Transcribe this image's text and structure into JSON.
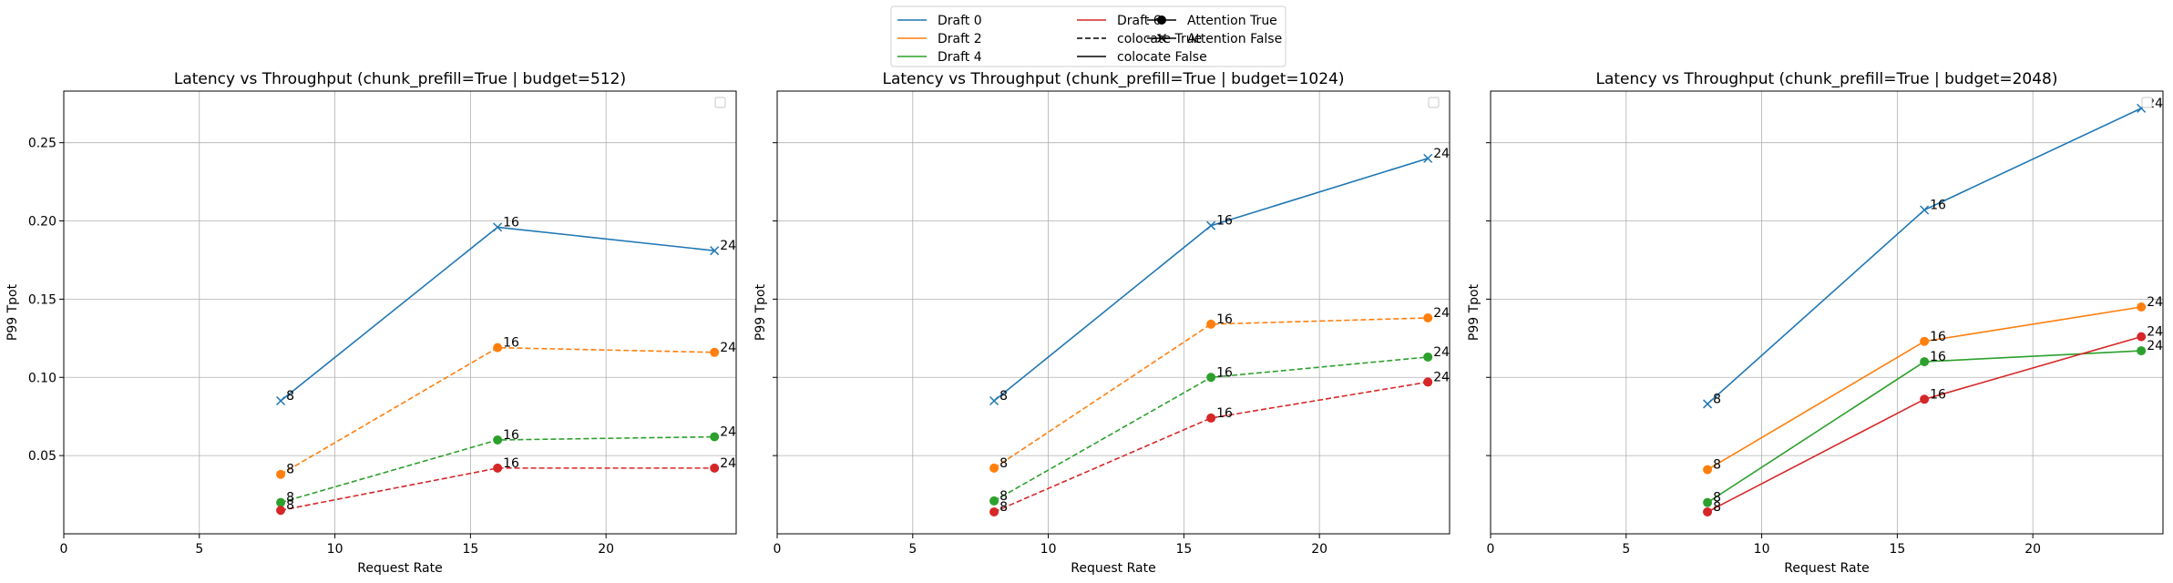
{
  "legend": {
    "position": "top-center",
    "entries": [
      {
        "label": "Draft 0",
        "color": "#1f77b4",
        "style": "solid",
        "marker": "none"
      },
      {
        "label": "Draft 2",
        "color": "#ff7f0e",
        "style": "solid",
        "marker": "none"
      },
      {
        "label": "Draft 4",
        "color": "#2ca02c",
        "style": "solid",
        "marker": "none"
      },
      {
        "label": "Draft 6",
        "color": "#d62728",
        "style": "solid",
        "marker": "none"
      },
      {
        "label": "colocate True",
        "color": "#000000",
        "style": "dashed",
        "marker": "none"
      },
      {
        "label": "colocate False",
        "color": "#000000",
        "style": "solid",
        "marker": "none"
      },
      {
        "label": "Attention True",
        "color": "#000000",
        "style": "solid",
        "marker": "circle"
      },
      {
        "label": "Attention False",
        "color": "#000000",
        "style": "solid",
        "marker": "x"
      }
    ]
  },
  "chart_data": [
    {
      "type": "line",
      "title": "Latency vs Throughput (chunk_prefill=True | budget=512)",
      "xlabel": "Request Rate",
      "ylabel": "P99 Tpot",
      "xlim": [
        0,
        24.8
      ],
      "ylim": [
        0.0,
        0.283
      ],
      "xticks": [
        0,
        5,
        10,
        15,
        20
      ],
      "yticks": [
        0.05,
        0.1,
        0.15,
        0.2,
        0.25
      ],
      "grid": true,
      "empty_legend": "top-right",
      "series": [
        {
          "name": "Draft 0",
          "color": "#1f77b4",
          "dashed": false,
          "marker": "x",
          "x": [
            8,
            16,
            24
          ],
          "y": [
            0.085,
            0.196,
            0.181
          ],
          "labels": [
            "8",
            "16",
            "24"
          ]
        },
        {
          "name": "Draft 2",
          "color": "#ff7f0e",
          "dashed": true,
          "marker": "circle",
          "x": [
            8,
            16,
            24
          ],
          "y": [
            0.038,
            0.119,
            0.116
          ],
          "labels": [
            "8",
            "16",
            "24"
          ]
        },
        {
          "name": "Draft 4",
          "color": "#2ca02c",
          "dashed": true,
          "marker": "circle",
          "x": [
            8,
            16,
            24
          ],
          "y": [
            0.02,
            0.06,
            0.062
          ],
          "labels": [
            "8",
            "16",
            "24"
          ]
        },
        {
          "name": "Draft 6",
          "color": "#d62728",
          "dashed": true,
          "marker": "circle",
          "x": [
            8,
            16,
            24
          ],
          "y": [
            0.015,
            0.042,
            0.042
          ],
          "labels": [
            "8",
            "16",
            "24"
          ]
        }
      ]
    },
    {
      "type": "line",
      "title": "Latency vs Throughput (chunk_prefill=True | budget=1024)",
      "xlabel": "Request Rate",
      "ylabel": "P99 Tpot",
      "xlim": [
        0,
        24.8
      ],
      "ylim": [
        0.0,
        0.283
      ],
      "xticks": [
        0,
        5,
        10,
        15,
        20
      ],
      "yticks": [
        0.05,
        0.1,
        0.15,
        0.2,
        0.25
      ],
      "grid": true,
      "empty_legend": "top-right",
      "series": [
        {
          "name": "Draft 0",
          "color": "#1f77b4",
          "dashed": false,
          "marker": "x",
          "x": [
            8,
            16,
            24
          ],
          "y": [
            0.085,
            0.197,
            0.24
          ],
          "labels": [
            "8",
            "16",
            "24"
          ]
        },
        {
          "name": "Draft 2",
          "color": "#ff7f0e",
          "dashed": true,
          "marker": "circle",
          "x": [
            8,
            16,
            24
          ],
          "y": [
            0.042,
            0.134,
            0.138
          ],
          "labels": [
            "8",
            "16",
            "24"
          ]
        },
        {
          "name": "Draft 4",
          "color": "#2ca02c",
          "dashed": true,
          "marker": "circle",
          "x": [
            8,
            16,
            24
          ],
          "y": [
            0.021,
            0.1,
            0.113
          ],
          "labels": [
            "8",
            "16",
            "24"
          ]
        },
        {
          "name": "Draft 6",
          "color": "#d62728",
          "dashed": true,
          "marker": "circle",
          "x": [
            8,
            16,
            24
          ],
          "y": [
            0.014,
            0.074,
            0.097
          ],
          "labels": [
            "8",
            "16",
            "24"
          ]
        }
      ]
    },
    {
      "type": "line",
      "title": "Latency vs Throughput (chunk_prefill=True | budget=2048)",
      "xlabel": "Request Rate",
      "ylabel": "P99 Tpot",
      "xlim": [
        0,
        24.8
      ],
      "ylim": [
        0.0,
        0.283
      ],
      "xticks": [
        0,
        5,
        10,
        15,
        20
      ],
      "yticks": [
        0.05,
        0.1,
        0.15,
        0.2,
        0.25
      ],
      "grid": true,
      "empty_legend": "top-right",
      "series": [
        {
          "name": "Draft 0",
          "color": "#1f77b4",
          "dashed": false,
          "marker": "x",
          "x": [
            8,
            16,
            24
          ],
          "y": [
            0.083,
            0.207,
            0.272
          ],
          "labels": [
            "8",
            "16",
            "24"
          ]
        },
        {
          "name": "Draft 2",
          "color": "#ff7f0e",
          "dashed": false,
          "marker": "circle",
          "x": [
            8,
            16,
            24
          ],
          "y": [
            0.041,
            0.123,
            0.145
          ],
          "labels": [
            "8",
            "16",
            "24"
          ]
        },
        {
          "name": "Draft 4",
          "color": "#2ca02c",
          "dashed": false,
          "marker": "circle",
          "x": [
            8,
            16,
            24
          ],
          "y": [
            0.02,
            0.11,
            0.117
          ],
          "labels": [
            "8",
            "16",
            "24"
          ]
        },
        {
          "name": "Draft 6",
          "color": "#d62728",
          "dashed": false,
          "marker": "circle",
          "x": [
            8,
            16,
            24
          ],
          "y": [
            0.014,
            0.086,
            0.126
          ],
          "labels": [
            "8",
            "16",
            "24"
          ]
        }
      ]
    }
  ]
}
